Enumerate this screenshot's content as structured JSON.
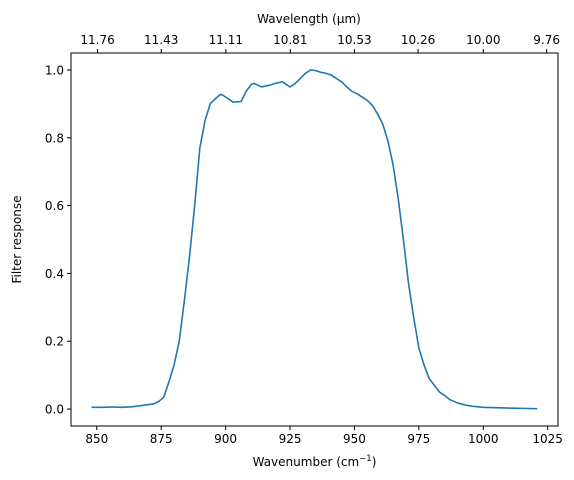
{
  "chart_data": {
    "type": "line",
    "xlabel_main": "Wavenumber (cm",
    "xlabel_sup": "−1",
    "xlabel_close": ")",
    "ylabel": "Filter response",
    "top_xlabel": "Wavelength (μm)",
    "xlim": [
      840,
      1029
    ],
    "ylim": [
      -0.05,
      1.05
    ],
    "grid": false,
    "color": "#1f77b4",
    "x_ticks": [
      850,
      875,
      900,
      925,
      950,
      975,
      1000,
      1025
    ],
    "x_tick_labels": [
      "850",
      "875",
      "900",
      "925",
      "950",
      "975",
      "1000",
      "1025"
    ],
    "y_ticks": [
      0.0,
      0.2,
      0.4,
      0.6,
      0.8,
      1.0
    ],
    "y_tick_labels": [
      "0.0",
      "0.2",
      "0.4",
      "0.6",
      "0.8",
      "1.0"
    ],
    "top_ticks": [
      850.3,
      875.0,
      900.1,
      925.1,
      950.0,
      974.7,
      1000.0,
      1024.6
    ],
    "top_tick_labels": [
      "11.76",
      "11.43",
      "11.11",
      "10.81",
      "10.53",
      "10.26",
      "10.00",
      "9.76"
    ],
    "series": [
      {
        "x": [
          848,
          852,
          856,
          860,
          864,
          868,
          872,
          874,
          876,
          878,
          880,
          882,
          884,
          886,
          888,
          890,
          892,
          894,
          896,
          898,
          899,
          901,
          903,
          906,
          908,
          910,
          911,
          914,
          917,
          919,
          922,
          925,
          927,
          929,
          931,
          933,
          935,
          937,
          939,
          941,
          943,
          945,
          947,
          949,
          951,
          953,
          955,
          957,
          959,
          961,
          963,
          965,
          967,
          969,
          971,
          973,
          975,
          977,
          979,
          981,
          983,
          985,
          987,
          990,
          993,
          996,
          1000,
          1005,
          1010,
          1015,
          1021
        ],
        "y": [
          0.005,
          0.005,
          0.006,
          0.005,
          0.007,
          0.011,
          0.015,
          0.022,
          0.035,
          0.08,
          0.13,
          0.2,
          0.32,
          0.45,
          0.6,
          0.77,
          0.85,
          0.9,
          0.915,
          0.928,
          0.925,
          0.915,
          0.905,
          0.907,
          0.937,
          0.958,
          0.96,
          0.95,
          0.955,
          0.96,
          0.965,
          0.95,
          0.96,
          0.975,
          0.99,
          1.0,
          0.998,
          0.993,
          0.99,
          0.985,
          0.975,
          0.965,
          0.95,
          0.937,
          0.93,
          0.92,
          0.91,
          0.895,
          0.87,
          0.84,
          0.79,
          0.72,
          0.62,
          0.5,
          0.37,
          0.27,
          0.18,
          0.13,
          0.09,
          0.07,
          0.05,
          0.04,
          0.028,
          0.018,
          0.012,
          0.008,
          0.005,
          0.004,
          0.003,
          0.002,
          0.001
        ]
      }
    ]
  }
}
